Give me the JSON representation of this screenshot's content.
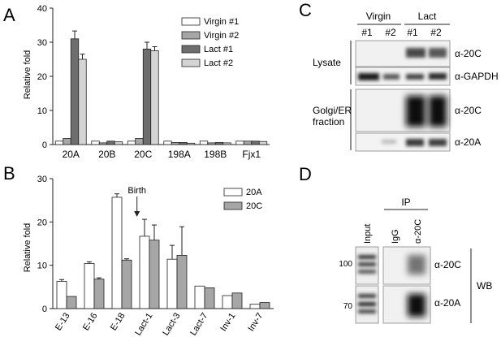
{
  "panels": {
    "A": {
      "letter": "A"
    },
    "B": {
      "letter": "B"
    },
    "C": {
      "letter": "C"
    },
    "D": {
      "letter": "D"
    }
  },
  "chart_data": [
    {
      "panel": "A",
      "type": "bar",
      "ylabel": "Relative fold",
      "ylim": [
        0,
        40
      ],
      "yticks": [
        0,
        10,
        20,
        30,
        40
      ],
      "categories": [
        "20A",
        "20B",
        "20C",
        "198A",
        "198B",
        "Fjx1"
      ],
      "legend_position": "top-right",
      "series": [
        {
          "name": "Virgin #1",
          "color": "#ffffff",
          "values": [
            1.0,
            1.0,
            1.0,
            1.0,
            1.0,
            1.0
          ],
          "errors": [
            0.1,
            0.1,
            0.1,
            0.1,
            0.1,
            0.1
          ]
        },
        {
          "name": "Virgin #2",
          "color": "#a6a6a6",
          "values": [
            1.8,
            0.5,
            1.8,
            0.6,
            0.5,
            1.0
          ],
          "errors": [
            0.2,
            0.1,
            0.2,
            0.1,
            0.1,
            0.1
          ]
        },
        {
          "name": "Lact #1",
          "color": "#6e6e6e",
          "values": [
            31.0,
            1.0,
            28.0,
            0.6,
            0.6,
            1.0
          ],
          "errors": [
            2.3,
            0.1,
            2.0,
            0.1,
            0.1,
            0.1
          ]
        },
        {
          "name": "Lact #2",
          "color": "#d4d4d4",
          "values": [
            25.0,
            0.8,
            27.5,
            0.4,
            0.5,
            0.9
          ],
          "errors": [
            1.5,
            0.1,
            1.2,
            0.1,
            0.1,
            0.1
          ]
        }
      ]
    },
    {
      "panel": "B",
      "type": "bar",
      "ylabel": "Relative fold",
      "ylim": [
        0,
        30
      ],
      "yticks": [
        0,
        10,
        20,
        30
      ],
      "categories": [
        "E-13",
        "E-16",
        "E-18",
        "Lact-1",
        "Lact-3",
        "Lact-7",
        "Inv-1",
        "Inv-7"
      ],
      "legend_position": "top-right",
      "annotation": "Birth",
      "annotation_category": "E-18",
      "series": [
        {
          "name": "20A",
          "color": "#ffffff",
          "values": [
            6.3,
            10.4,
            25.7,
            16.7,
            11.4,
            5.2,
            3.0,
            1.0
          ],
          "errors": [
            0.4,
            0.4,
            0.8,
            3.9,
            3.2,
            0.2,
            0.2,
            0.1
          ]
        },
        {
          "name": "20C",
          "color": "#a6a6a6",
          "values": [
            2.8,
            6.8,
            11.2,
            15.8,
            12.3,
            4.8,
            3.6,
            1.4
          ],
          "errors": [
            0.2,
            0.3,
            0.3,
            3.5,
            6.6,
            0.2,
            0.2,
            0.1
          ]
        }
      ]
    }
  ],
  "blotC": {
    "group_labels": [
      "Virgin",
      "Lact"
    ],
    "lane_labels": [
      "#1",
      "#2",
      "#1",
      "#2"
    ],
    "section_labels": [
      "Lysate",
      "Golgi/ER",
      "fraction"
    ],
    "antibody_labels": [
      "α-20C",
      "α-GAPDH",
      "α-20C",
      "α-20A"
    ]
  },
  "blotD": {
    "ip_label": "IP",
    "lane_labels": [
      "Input",
      "IgG",
      "α-20C"
    ],
    "mw_markers": [
      "100",
      "70"
    ],
    "antibody_labels": [
      "α-20C",
      "α-20A"
    ],
    "side_label": "WB"
  }
}
